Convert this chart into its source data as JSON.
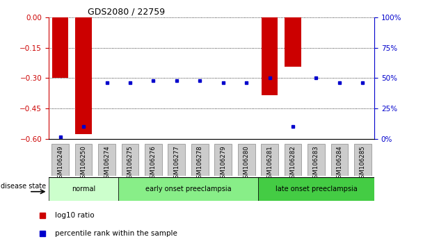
{
  "title": "GDS2080 / 22759",
  "samples": [
    "GSM106249",
    "GSM106250",
    "GSM106274",
    "GSM106275",
    "GSM106276",
    "GSM106277",
    "GSM106278",
    "GSM106279",
    "GSM106280",
    "GSM106281",
    "GSM106282",
    "GSM106283",
    "GSM106284",
    "GSM106285"
  ],
  "log10_ratio": [
    -0.3,
    -0.575,
    -0.002,
    -0.002,
    -0.002,
    -0.002,
    -0.002,
    -0.002,
    -0.002,
    -0.385,
    -0.245,
    -0.002,
    -0.002,
    -0.002
  ],
  "percentile": [
    2,
    10,
    46,
    46,
    48,
    48,
    48,
    46,
    46,
    50,
    10,
    50,
    46,
    46
  ],
  "ylim_left": [
    -0.6,
    0.0
  ],
  "ylim_right": [
    0,
    100
  ],
  "yticks_left": [
    0,
    -0.15,
    -0.3,
    -0.45,
    -0.6
  ],
  "yticks_right": [
    100,
    75,
    50,
    25,
    0
  ],
  "bar_color": "#cc0000",
  "dot_color": "#0000cc",
  "bg_color": "#ffffff",
  "groups": [
    {
      "label": "normal",
      "start": 0,
      "end": 3,
      "color": "#ccffcc"
    },
    {
      "label": "early onset preeclampsia",
      "start": 3,
      "end": 9,
      "color": "#88ee88"
    },
    {
      "label": "late onset preeclampsia",
      "start": 9,
      "end": 14,
      "color": "#44cc44"
    }
  ],
  "legend_items": [
    {
      "label": "log10 ratio",
      "color": "#cc0000"
    },
    {
      "label": "percentile rank within the sample",
      "color": "#0000cc"
    }
  ],
  "disease_state_label": "disease state",
  "left_tick_color": "#cc0000",
  "right_tick_color": "#0000cc",
  "xticklabel_bg": "#cccccc",
  "bar_width": 0.7
}
